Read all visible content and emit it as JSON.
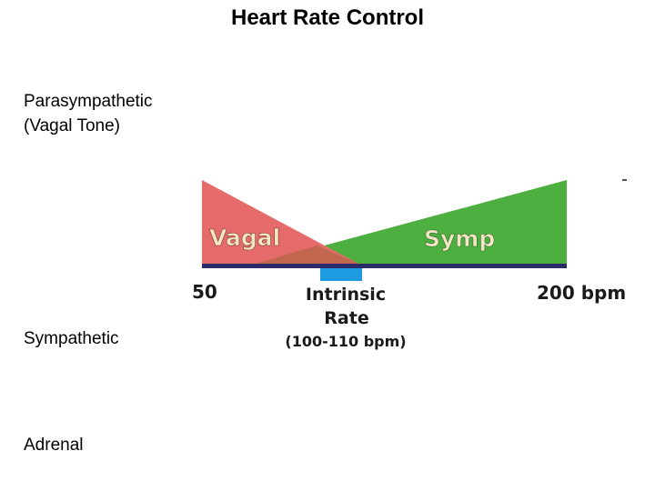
{
  "title": "Heart Rate Control",
  "side_labels": {
    "parasympathetic_line1": "Parasympathetic",
    "parasympathetic_line2": "(Vagal Tone)",
    "sympathetic": "Sympathetic",
    "adrenal": "Adrenal"
  },
  "diagram": {
    "vagal_label": "Vagal",
    "symp_label": "Symp",
    "left_tick": "50",
    "right_tick": "200 bpm",
    "intrinsic_line1": "Intrinsic",
    "intrinsic_line2": "Rate",
    "intrinsic_range": "(100-110 bpm)",
    "colors": {
      "vagal_fill": "#e56b6b",
      "vagal_overlap": "#c0674e",
      "symp_fill": "#4caf3f",
      "symp_text": "#f4e6c4",
      "vagal_text": "#f4e6c4",
      "axis_line": "#2b2b6b",
      "intrinsic_block": "#1e9be0",
      "tick_text": "#1a1a1a"
    }
  }
}
